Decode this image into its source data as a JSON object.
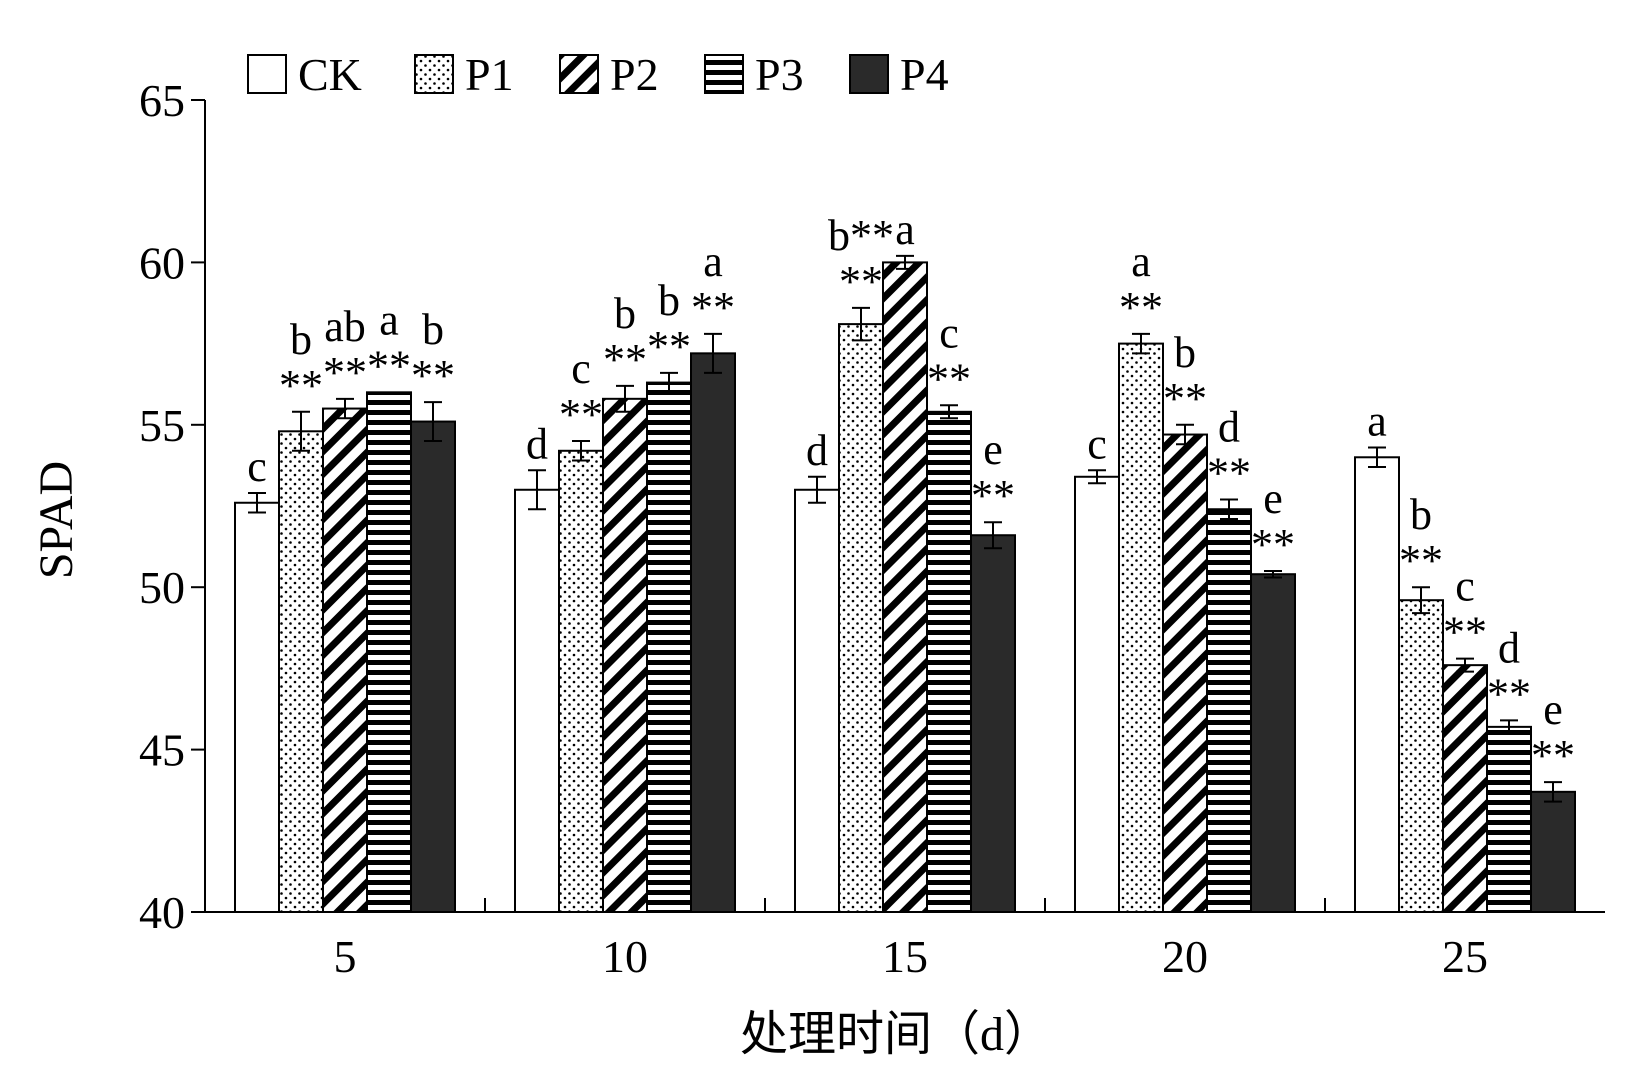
{
  "chart_data": {
    "type": "bar",
    "xlabel": "处理时间（d）",
    "ylabel": "SPAD",
    "ylim": [
      40,
      65
    ],
    "yticks": [
      "40",
      "45",
      "50",
      "55",
      "60",
      "65"
    ],
    "categories": [
      "5",
      "10",
      "15",
      "20",
      "25"
    ],
    "legend_position": "top-left",
    "series": [
      {
        "name": "CK",
        "pattern": "white",
        "values": [
          52.6,
          53.0,
          53.0,
          53.4,
          54.0
        ],
        "errors": [
          0.3,
          0.6,
          0.4,
          0.2,
          0.3
        ],
        "labels": [
          "c",
          "d",
          "d",
          "c",
          "a"
        ]
      },
      {
        "name": "P1",
        "pattern": "dots",
        "values": [
          54.8,
          54.2,
          58.1,
          57.5,
          49.6
        ],
        "errors": [
          0.6,
          0.3,
          0.5,
          0.3,
          0.4
        ],
        "labels": [
          "b\n**",
          "c\n**",
          "b**\n**",
          "a\n**",
          "b\n**"
        ]
      },
      {
        "name": "P2",
        "pattern": "backslash",
        "values": [
          55.5,
          55.8,
          60.0,
          54.7,
          47.6
        ],
        "errors": [
          0.3,
          0.4,
          0.2,
          0.3,
          0.2
        ],
        "labels": [
          "ab\n**",
          "b\n**",
          "a",
          "b\n**",
          "c\n**"
        ]
      },
      {
        "name": "P3",
        "pattern": "hlines",
        "values": [
          56.0,
          56.3,
          55.4,
          52.4,
          45.7
        ],
        "errors": [
          0.0,
          0.3,
          0.2,
          0.3,
          0.2
        ],
        "labels": [
          "a\n**",
          "b\n**",
          "c\n**",
          "d\n**",
          "d\n**"
        ]
      },
      {
        "name": "P4",
        "pattern": "black",
        "values": [
          55.1,
          57.2,
          51.6,
          50.4,
          43.7
        ],
        "errors": [
          0.6,
          0.6,
          0.4,
          0.1,
          0.3
        ],
        "labels": [
          "b\n**",
          "a\n**",
          "e\n**",
          "e\n**",
          "e\n**"
        ]
      }
    ]
  }
}
